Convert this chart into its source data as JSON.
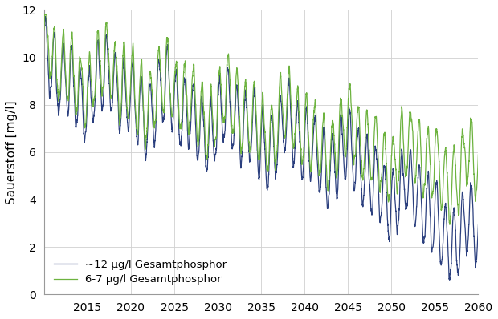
{
  "ylabel": "Sauerstoff [mg/l]",
  "xlabel": "",
  "xlim": [
    2010,
    2060
  ],
  "ylim": [
    0,
    12
  ],
  "yticks": [
    0,
    2,
    4,
    6,
    8,
    10,
    12
  ],
  "xticks": [
    2010,
    2015,
    2020,
    2025,
    2030,
    2035,
    2040,
    2045,
    2050,
    2055,
    2060
  ],
  "xtick_labels": [
    "",
    "2015",
    "2020",
    "2025",
    "2030",
    "2035",
    "2040",
    "2045",
    "2050",
    "2055",
    "2060"
  ],
  "green_color": "#6db33f",
  "blue_color": "#2b3f7e",
  "legend_label_green": "6-7 μg/l Gesamtphosphor",
  "legend_label_blue": "~12 μg/l Gesamtphosphor",
  "background_color": "#ffffff",
  "grid_color": "#d0d0d0",
  "linewidth": 0.9,
  "seed": 7,
  "start_year": 2010.0,
  "end_year": 2060.0,
  "n_points": 5000
}
